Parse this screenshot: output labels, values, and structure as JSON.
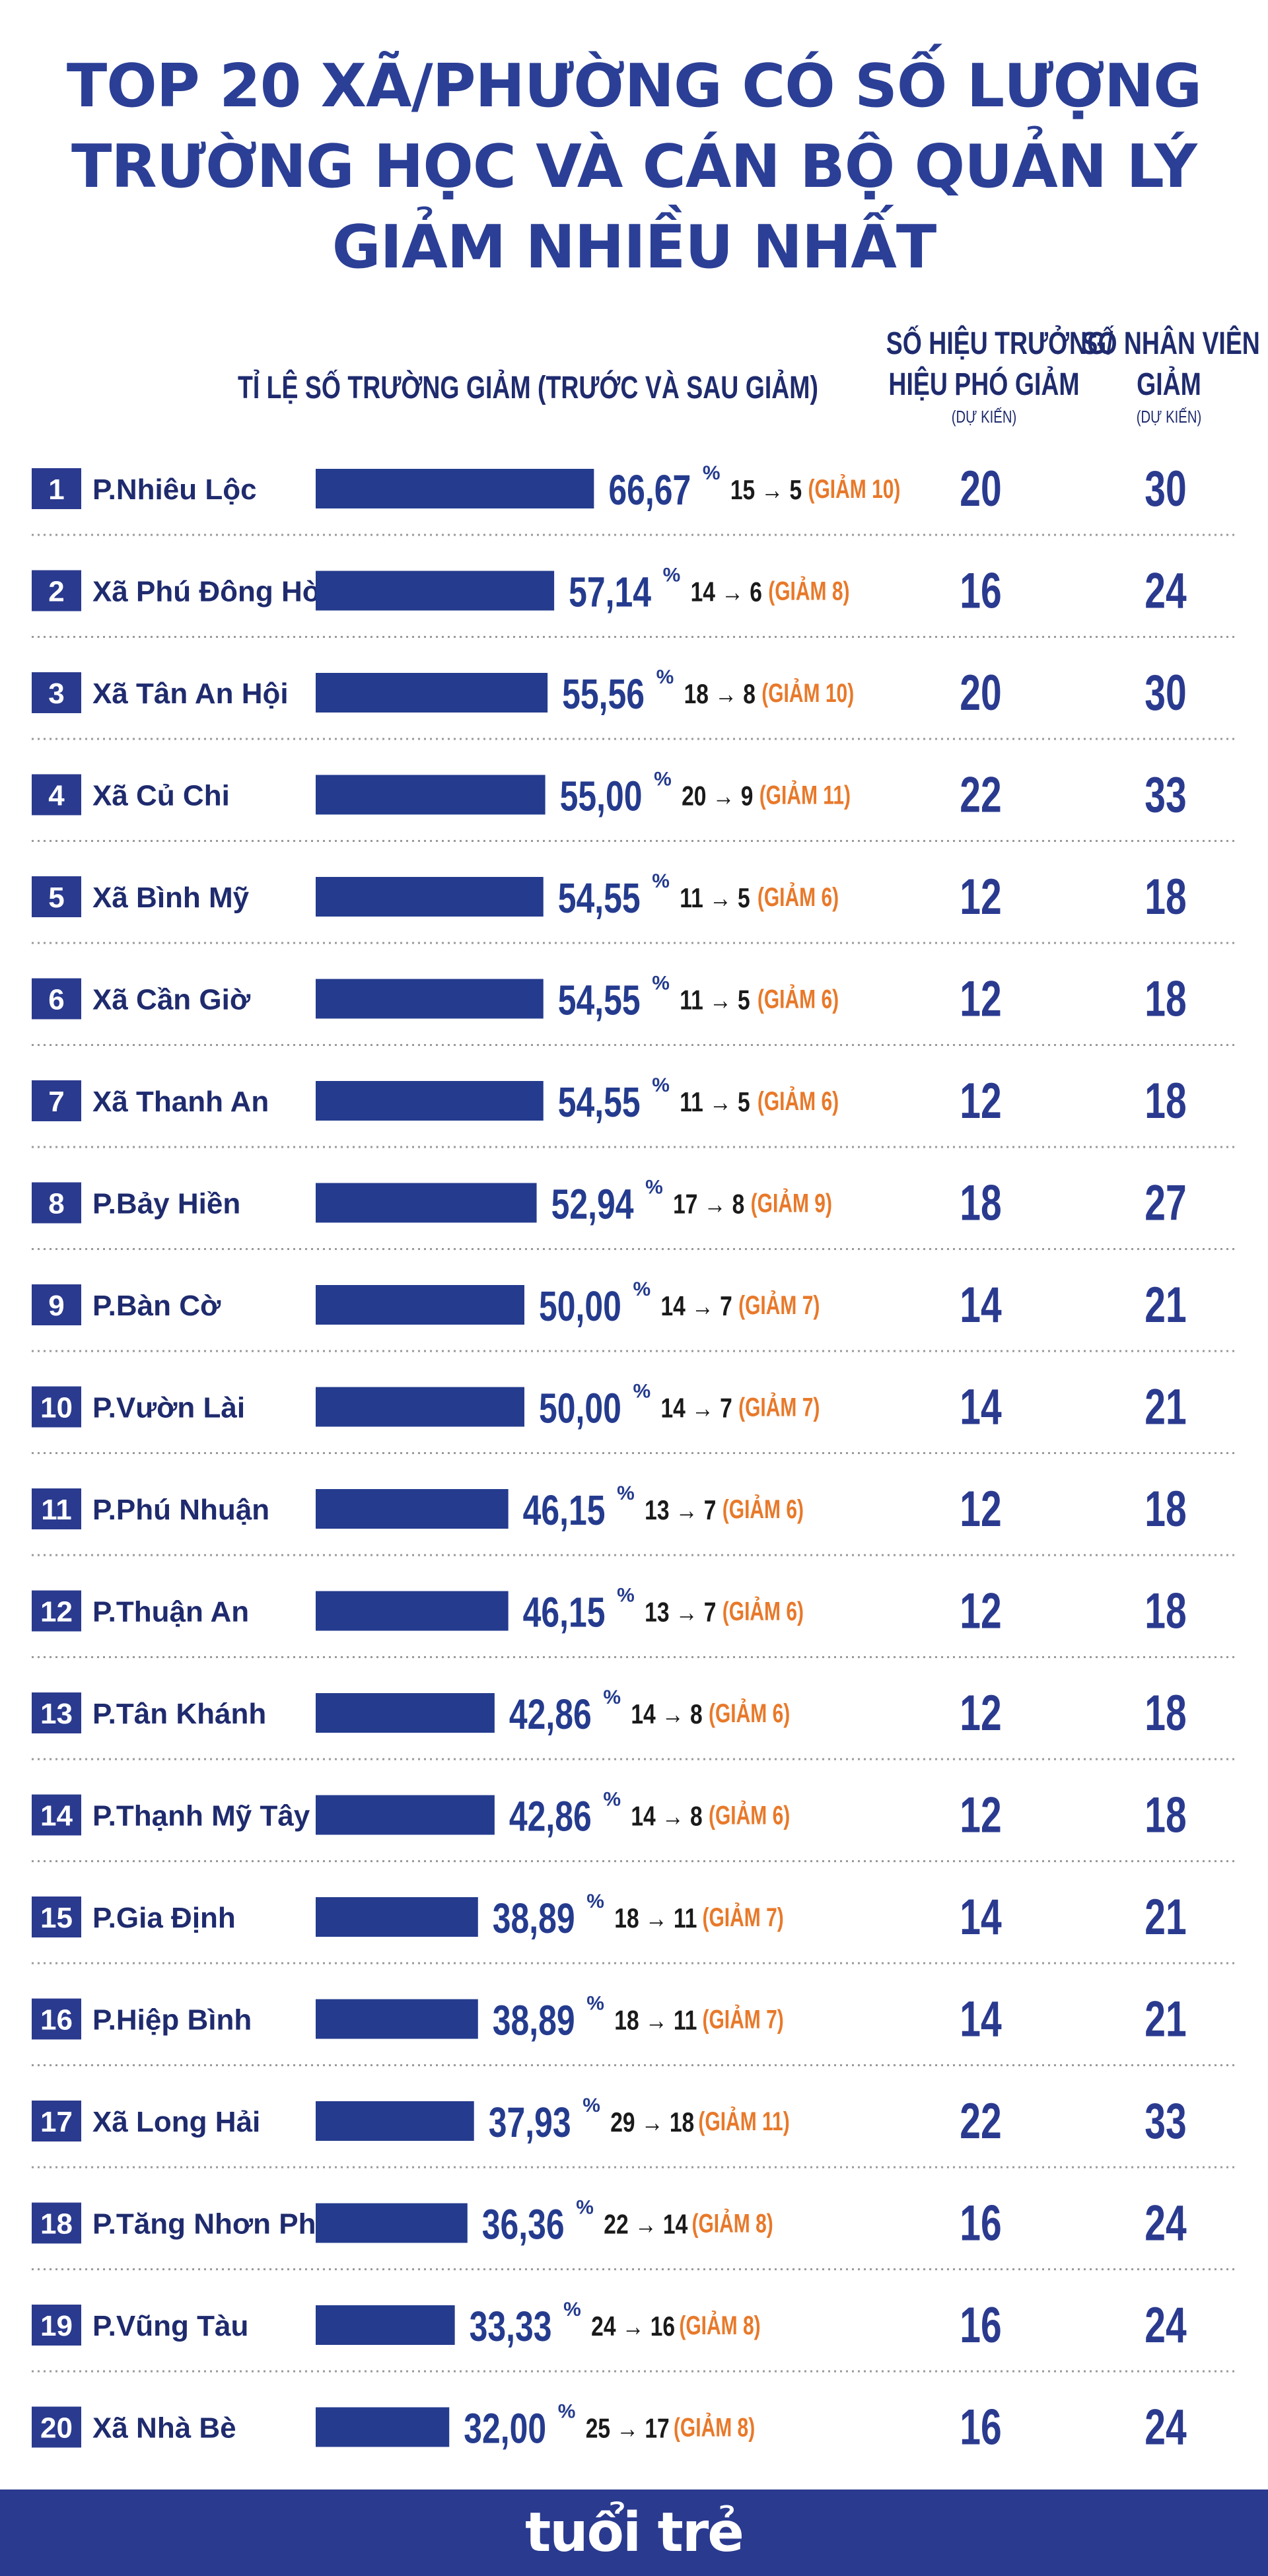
{
  "title_lines": [
    "TOP 20 XÃ/PHƯỜNG CÓ SỐ LƯỢNG",
    "TRƯỜNG HỌC VÀ CÁN BỘ QUẢN LÝ",
    "GIẢM NHIỀU NHẤT"
  ],
  "headers": {
    "ratio": "TỈ LỆ SỐ TRƯỜNG GIẢM (TRƯỚC VÀ SAU GIẢM)",
    "principals_line1": "SỐ HIỆU TRƯỞNG/",
    "principals_line2": "HIỆU PHÓ GIẢM",
    "principals_sub": "(DỰ KIẾN)",
    "staff_line1": "SỐ NHÂN VIÊN",
    "staff_line2": "GIẢM",
    "staff_sub": "(DỰ KIẾN)"
  },
  "colors": {
    "navy": "#2a3a8f",
    "bar": "#243b8e",
    "orange": "#e8792a",
    "text": "#1f2b6e",
    "divider": "#9a9a9a"
  },
  "footer": {
    "logo": "tuổi trẻ"
  },
  "chart_data": {
    "type": "bar",
    "orientation": "horizontal",
    "categories": [
      "P.Nhiêu Lộc",
      "Xã Phú Đông Hòa",
      "Xã Tân An Hội",
      "Xã Củ Chi",
      "Xã Bình Mỹ",
      "Xã Cần Giờ",
      "Xã Thanh An",
      "P.Bảy Hiền",
      "P.Bàn Cờ",
      "P.Vườn Lài",
      "P.Phú Nhuận",
      "P.Thuận An",
      "P.Tân Khánh",
      "P.Thạnh Mỹ Tây",
      "P.Gia Định",
      "P.Hiệp Bình",
      "Xã Long Hải",
      "P.Tăng Nhơn Phú",
      "P.Vũng Tàu",
      "Xã Nhà Bè"
    ],
    "ranks": [
      "1",
      "2",
      "3",
      "4",
      "5",
      "6",
      "7",
      "8",
      "9",
      "10",
      "11",
      "12",
      "13",
      "14",
      "15",
      "16",
      "17",
      "18",
      "19",
      "20"
    ],
    "values": [
      66.67,
      57.14,
      55.56,
      55.0,
      54.55,
      54.55,
      54.55,
      52.94,
      50.0,
      50.0,
      46.15,
      46.15,
      42.86,
      42.86,
      38.89,
      38.89,
      37.93,
      36.36,
      33.33,
      32.0
    ],
    "value_labels": [
      "66,67",
      "57,14",
      "55,56",
      "55,00",
      "54,55",
      "54,55",
      "54,55",
      "52,94",
      "50,00",
      "50,00",
      "46,15",
      "46,15",
      "42,86",
      "42,86",
      "38,89",
      "38,89",
      "37,93",
      "36,36",
      "33,33",
      "32,00"
    ],
    "unit": "%",
    "before_after": [
      "15 → 5",
      "14 → 6",
      "18 → 8",
      "20 → 9",
      "11 → 5",
      "11 → 5",
      "11 → 5",
      "17 → 8",
      "14 → 7",
      "14 → 7",
      "13 → 7",
      "13 → 7",
      "14 → 8",
      "14 → 8",
      "18 → 11",
      "18 → 11",
      "29 → 18",
      "22 → 14",
      "24 → 16",
      "25 → 17"
    ],
    "reductions": [
      "(GIẢM 10)",
      "(GIẢM 8)",
      "(GIẢM 10)",
      "(GIẢM 11)",
      "(GIẢM 6)",
      "(GIẢM 6)",
      "(GIẢM 6)",
      "(GIẢM 9)",
      "(GIẢM 7)",
      "(GIẢM 7)",
      "(GIẢM 6)",
      "(GIẢM 6)",
      "(GIẢM 6)",
      "(GIẢM 6)",
      "(GIẢM 7)",
      "(GIẢM 7)",
      "(GIẢM 11)",
      "(GIẢM 8)",
      "(GIẢM 8)",
      "(GIẢM 8)"
    ],
    "principals": [
      "20",
      "16",
      "20",
      "22",
      "12",
      "12",
      "12",
      "18",
      "14",
      "14",
      "12",
      "12",
      "12",
      "12",
      "14",
      "14",
      "22",
      "16",
      "16",
      "16"
    ],
    "staff": [
      "30",
      "24",
      "30",
      "33",
      "18",
      "18",
      "18",
      "27",
      "21",
      "21",
      "18",
      "18",
      "18",
      "18",
      "21",
      "21",
      "33",
      "24",
      "24",
      "24"
    ]
  }
}
